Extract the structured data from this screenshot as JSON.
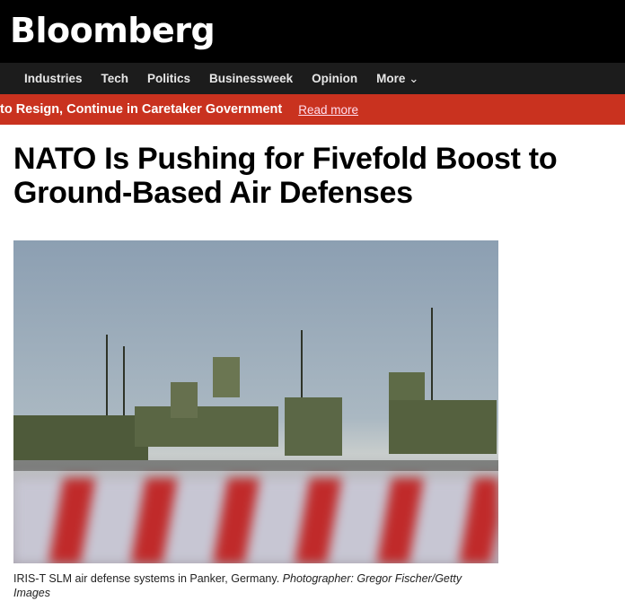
{
  "header": {
    "logo": "Bloomberg"
  },
  "nav": {
    "items": [
      "Industries",
      "Tech",
      "Politics",
      "Businessweek",
      "Opinion",
      "More"
    ]
  },
  "banner": {
    "text": "to Resign, Continue in Caretaker Government",
    "link": "Read more"
  },
  "article": {
    "headline": "NATO Is Pushing for Fivefold Boost to Ground-Based Air Defenses",
    "caption": "IRIS-T SLM air defense systems in Panker, Germany.",
    "credit": "Photographer: Gregor Fischer/Getty Images"
  },
  "colors": {
    "header": "#000000",
    "nav": "#1c1c1c",
    "banner": "#c9321f"
  }
}
